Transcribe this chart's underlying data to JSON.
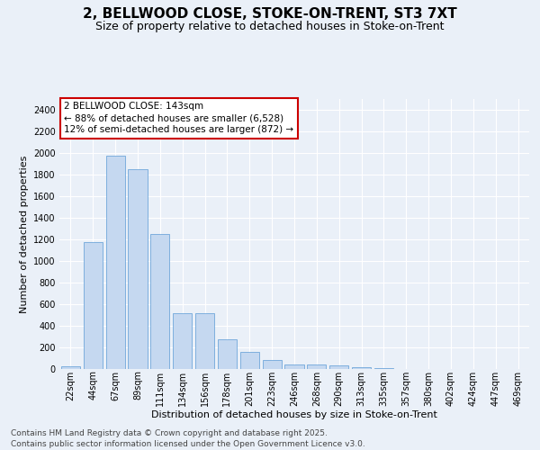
{
  "title_line1": "2, BELLWOOD CLOSE, STOKE-ON-TRENT, ST3 7XT",
  "title_line2": "Size of property relative to detached houses in Stoke-on-Trent",
  "xlabel": "Distribution of detached houses by size in Stoke-on-Trent",
  "ylabel": "Number of detached properties",
  "categories": [
    "22sqm",
    "44sqm",
    "67sqm",
    "89sqm",
    "111sqm",
    "134sqm",
    "156sqm",
    "178sqm",
    "201sqm",
    "223sqm",
    "246sqm",
    "268sqm",
    "290sqm",
    "313sqm",
    "335sqm",
    "357sqm",
    "380sqm",
    "402sqm",
    "424sqm",
    "447sqm",
    "469sqm"
  ],
  "values": [
    25,
    1175,
    1975,
    1850,
    1250,
    515,
    515,
    275,
    155,
    85,
    42,
    42,
    30,
    15,
    8,
    3,
    2,
    1,
    1,
    1,
    1
  ],
  "bar_color": "#c5d8f0",
  "bar_edge_color": "#5b9bd5",
  "annotation_text": "2 BELLWOOD CLOSE: 143sqm\n← 88% of detached houses are smaller (6,528)\n12% of semi-detached houses are larger (872) →",
  "annotation_box_color": "#ffffff",
  "annotation_box_edgecolor": "#cc0000",
  "ylim": [
    0,
    2500
  ],
  "yticks": [
    0,
    200,
    400,
    600,
    800,
    1000,
    1200,
    1400,
    1600,
    1800,
    2000,
    2200,
    2400
  ],
  "background_color": "#eaf0f8",
  "grid_color": "#ffffff",
  "footer_line1": "Contains HM Land Registry data © Crown copyright and database right 2025.",
  "footer_line2": "Contains public sector information licensed under the Open Government Licence v3.0.",
  "title_fontsize": 11,
  "subtitle_fontsize": 9,
  "axis_label_fontsize": 8,
  "tick_fontsize": 7,
  "annotation_fontsize": 7.5,
  "footer_fontsize": 6.5
}
